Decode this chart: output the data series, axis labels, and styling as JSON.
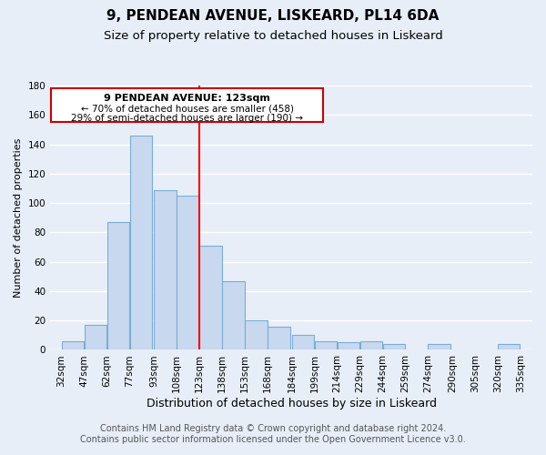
{
  "title": "9, PENDEAN AVENUE, LISKEARD, PL14 6DA",
  "subtitle": "Size of property relative to detached houses in Liskeard",
  "xlabel": "Distribution of detached houses by size in Liskeard",
  "ylabel": "Number of detached properties",
  "bar_left_edges": [
    32,
    47,
    62,
    77,
    93,
    108,
    123,
    138,
    153,
    168,
    184,
    199,
    214,
    229,
    244,
    259,
    274,
    290,
    305,
    320
  ],
  "bar_heights": [
    6,
    17,
    87,
    146,
    109,
    105,
    71,
    47,
    20,
    16,
    10,
    6,
    5,
    6,
    4,
    0,
    4,
    0,
    0,
    4
  ],
  "bar_widths_data": [
    15,
    15,
    15,
    16,
    15,
    15,
    15,
    15,
    15,
    16,
    15,
    15,
    15,
    15,
    15,
    15,
    16,
    15,
    15,
    15
  ],
  "tick_labels": [
    "32sqm",
    "47sqm",
    "62sqm",
    "77sqm",
    "93sqm",
    "108sqm",
    "123sqm",
    "138sqm",
    "153sqm",
    "168sqm",
    "184sqm",
    "199sqm",
    "214sqm",
    "229sqm",
    "244sqm",
    "259sqm",
    "274sqm",
    "290sqm",
    "305sqm",
    "320sqm",
    "335sqm"
  ],
  "tick_positions": [
    32,
    47,
    62,
    77,
    93,
    108,
    123,
    138,
    153,
    168,
    184,
    199,
    214,
    229,
    244,
    259,
    274,
    290,
    305,
    320,
    335
  ],
  "bar_color": "#c8d8ee",
  "bar_edge_color": "#7aaed4",
  "vline_x": 123,
  "vline_color": "red",
  "annotation_title": "9 PENDEAN AVENUE: 123sqm",
  "annotation_line1": "← 70% of detached houses are smaller (458)",
  "annotation_line2": "29% of semi-detached houses are larger (190) →",
  "annotation_box_color": "white",
  "annotation_box_edge": "#cc0000",
  "ylim": [
    0,
    180
  ],
  "yticks": [
    0,
    20,
    40,
    60,
    80,
    100,
    120,
    140,
    160,
    180
  ],
  "footer_line1": "Contains HM Land Registry data © Crown copyright and database right 2024.",
  "footer_line2": "Contains public sector information licensed under the Open Government Licence v3.0.",
  "background_color": "#e8eef8",
  "plot_bg_color": "#e8eef8",
  "grid_color": "white",
  "title_fontsize": 11,
  "subtitle_fontsize": 9.5,
  "xlabel_fontsize": 9,
  "ylabel_fontsize": 8,
  "footer_fontsize": 7,
  "tick_fontsize": 7.5
}
